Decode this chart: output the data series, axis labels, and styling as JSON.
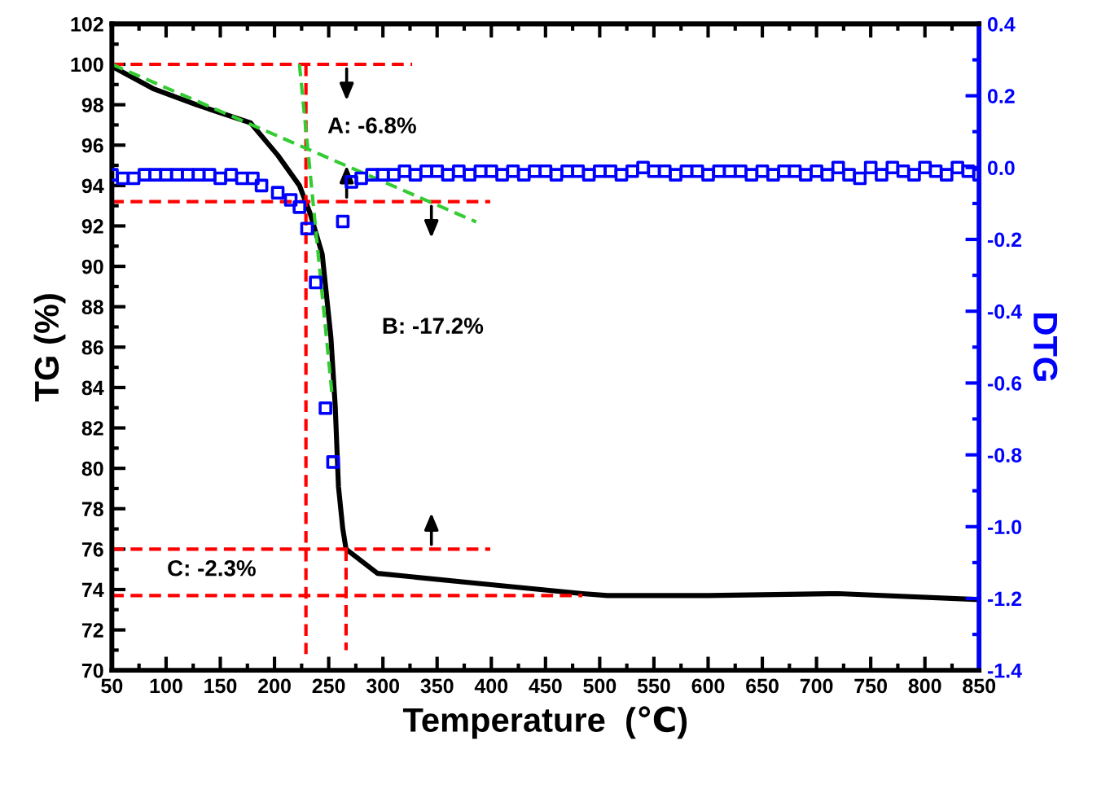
{
  "chart_data": {
    "type": "line",
    "xlabel": "Temperature  (℃)",
    "ylabel": "TG (%)",
    "y2label": "DTG",
    "xlim": [
      50,
      850
    ],
    "xticks": [
      50,
      100,
      150,
      200,
      250,
      300,
      350,
      400,
      450,
      500,
      550,
      600,
      650,
      700,
      750,
      800,
      850
    ],
    "ylim": [
      70,
      102
    ],
    "yticks": [
      70,
      72,
      74,
      76,
      78,
      80,
      82,
      84,
      86,
      88,
      90,
      92,
      94,
      96,
      98,
      100,
      102
    ],
    "y2lim": [
      -1.4,
      0.4
    ],
    "y2ticks": [
      -1.4,
      -1.2,
      {
        "value": -1,
        "label": "-1.0"
      },
      -0.8,
      -0.6,
      -0.4,
      -0.2,
      {
        "value": 0,
        "label": "0.0"
      },
      0.2,
      0.4
    ],
    "grid": false,
    "series": [
      {
        "color": "#000000",
        "line_style": "solid",
        "marker": "none",
        "x": [
          50,
          88,
          128,
          178,
          203,
          223,
          233,
          244,
          252,
          256,
          259,
          263,
          266,
          295,
          388,
          484,
          507,
          600,
          720,
          850
        ],
        "values": [
          99.9,
          98.8,
          98.0,
          97.1,
          95.5,
          94.0,
          92.6,
          90.6,
          86.5,
          83.1,
          79.1,
          77.0,
          76.0,
          74.8,
          74.3,
          73.8,
          73.7,
          73.7,
          73.8,
          73.5
        ]
      },
      {
        "type": "line",
        "color": "#ff0000",
        "line_style": "dashed",
        "marker": "none",
        "x": [
          50,
          327
        ],
        "values": [
          100,
          100
        ]
      },
      {
        "type": "line",
        "color": "#ff0000",
        "line_style": "dashed",
        "marker": "none",
        "x": [
          50,
          399
        ],
        "values": [
          93.2,
          93.2
        ]
      },
      {
        "type": "line",
        "color": "#ff0000",
        "line_style": "dashed",
        "marker": "none",
        "x": [
          50,
          399
        ],
        "values": [
          76,
          76
        ]
      },
      {
        "type": "line",
        "color": "#ff0000",
        "line_style": "dashed",
        "marker": "none",
        "x": [
          50,
          484
        ],
        "values": [
          73.7,
          73.7
        ]
      },
      {
        "type": "line",
        "color": "#ff0000",
        "line_style": "dashed",
        "marker": "none",
        "x": [
          229,
          229
        ],
        "values": [
          100,
          70.8
        ]
      },
      {
        "type": "line",
        "color": "#ff0000",
        "line_style": "dashed",
        "marker": "none",
        "x": [
          266,
          266
        ],
        "values": [
          76,
          71
        ]
      },
      {
        "type": "line",
        "color": "#33cc33",
        "line_style": "dashed",
        "marker": "none",
        "x": [
          50,
          386
        ],
        "values": [
          100,
          92.2
        ]
      },
      {
        "type": "line",
        "color": "#33cc33",
        "line_style": "dashed",
        "marker": "none",
        "x": [
          223,
          253
        ],
        "values": [
          100,
          83.7
        ]
      },
      {
        "type": "scatter",
        "axis": "y2",
        "color": "#0000ff",
        "marker": "square",
        "x": [
          50,
          60,
          70,
          80,
          90,
          100,
          110,
          120,
          130,
          140,
          150,
          160,
          170,
          180,
          188,
          203,
          215,
          223,
          230,
          238,
          247,
          254,
          263,
          271,
          280,
          290,
          300,
          310,
          320,
          330,
          340,
          350,
          360,
          370,
          380,
          390,
          400,
          410,
          420,
          430,
          440,
          450,
          460,
          470,
          480,
          490,
          500,
          510,
          520,
          530,
          540,
          550,
          560,
          570,
          580,
          590,
          600,
          610,
          620,
          630,
          640,
          650,
          660,
          670,
          680,
          690,
          700,
          710,
          720,
          730,
          740,
          750,
          760,
          770,
          780,
          790,
          800,
          810,
          820,
          830,
          840,
          850
        ],
        "values": [
          -0.02,
          -0.03,
          -0.03,
          -0.02,
          -0.02,
          -0.02,
          -0.02,
          -0.02,
          -0.02,
          -0.02,
          -0.03,
          -0.02,
          -0.03,
          -0.03,
          -0.05,
          -0.07,
          -0.09,
          -0.11,
          -0.17,
          -0.32,
          -0.67,
          -0.82,
          -0.15,
          -0.04,
          -0.03,
          -0.02,
          -0.02,
          -0.02,
          -0.01,
          -0.02,
          -0.01,
          -0.01,
          -0.02,
          -0.01,
          -0.02,
          -0.01,
          -0.01,
          -0.02,
          -0.01,
          -0.02,
          -0.01,
          -0.01,
          -0.02,
          -0.01,
          -0.01,
          -0.02,
          -0.01,
          -0.01,
          -0.02,
          -0.01,
          0.0,
          -0.01,
          -0.01,
          -0.02,
          -0.01,
          -0.01,
          -0.02,
          -0.01,
          -0.01,
          -0.01,
          -0.02,
          -0.01,
          -0.02,
          -0.01,
          -0.01,
          -0.02,
          -0.01,
          -0.02,
          0.0,
          -0.02,
          -0.03,
          0.0,
          -0.02,
          0.0,
          -0.01,
          -0.02,
          0.0,
          -0.01,
          -0.02,
          0.0,
          -0.01,
          -0.02
        ]
      }
    ],
    "annotations": [
      "A: -6.8%",
      "B: -17.2%",
      "C: -2.3%"
    ]
  }
}
